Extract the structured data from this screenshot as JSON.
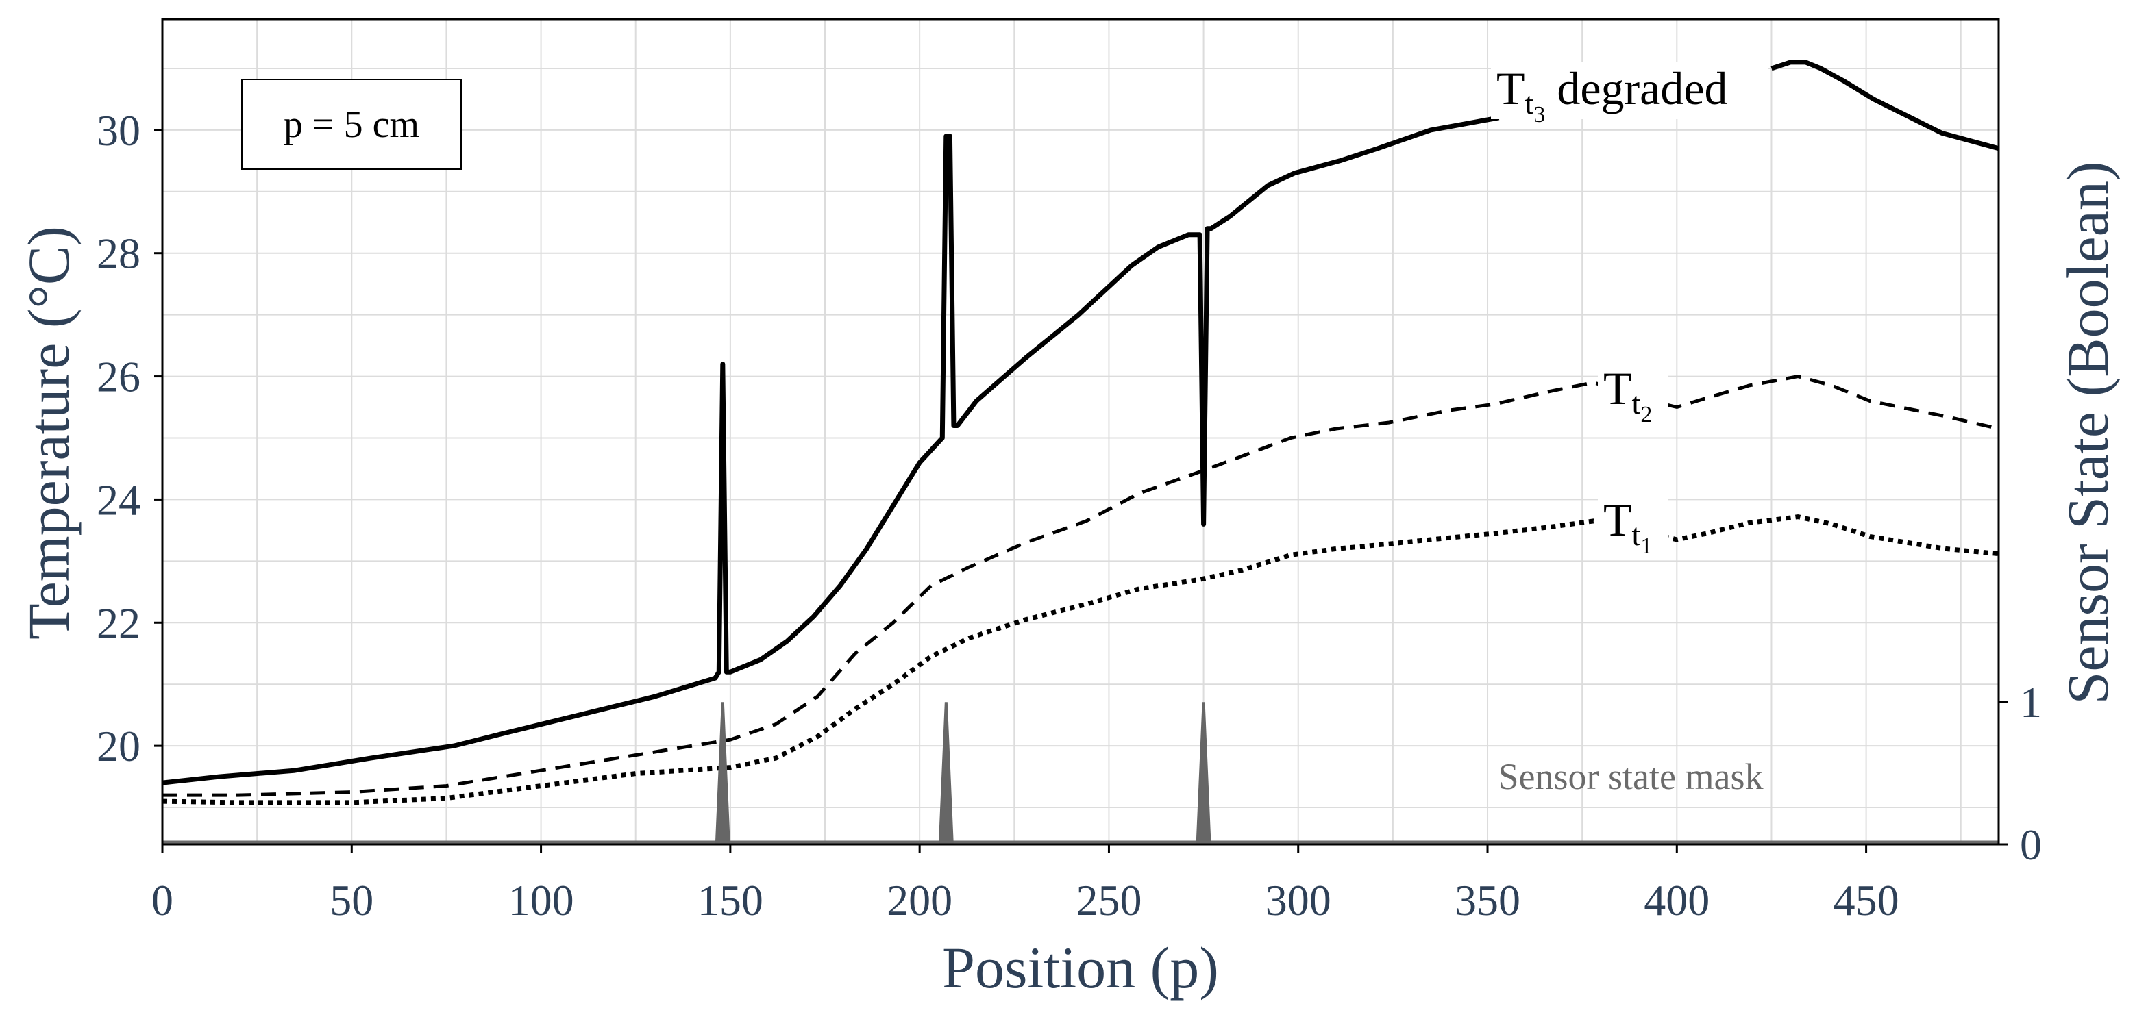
{
  "chart_data": {
    "type": "line",
    "xlabel": "Position (p)",
    "ylabel": "Temperature (°C)",
    "y2label": "Sensor State (Boolean)",
    "xlim": [
      0,
      485
    ],
    "ylim": [
      18.4,
      31.8
    ],
    "y2lim": [
      0,
      5.8
    ],
    "x_ticks": [
      0,
      50,
      100,
      150,
      200,
      250,
      300,
      350,
      400,
      450
    ],
    "y_ticks": [
      20,
      22,
      24,
      26,
      28,
      30
    ],
    "y2_ticks": [
      0,
      1
    ],
    "annotation_box": "p = 5 cm",
    "mask_label": "Sensor state mask",
    "labels": {
      "t3": {
        "main": "T",
        "sub": "t",
        "subsub": "3",
        "suffix": " degraded"
      },
      "t2": {
        "main": "T",
        "sub": "t",
        "subsub": "2"
      },
      "t1": {
        "main": "T",
        "sub": "t",
        "subsub": "1"
      }
    },
    "series": [
      {
        "name": "T_t3 degraded",
        "style": "solid",
        "x": [
          0,
          15,
          35,
          55,
          77,
          90,
          110,
          130,
          146,
          147,
          148,
          149,
          150,
          158,
          165,
          172,
          179,
          186,
          193,
          200,
          206,
          207,
          208,
          209,
          210,
          215,
          228,
          242,
          256,
          263,
          271,
          274,
          275,
          276,
          277,
          282,
          292,
          299,
          311,
          321,
          335,
          353
        ],
        "values": [
          19.4,
          19.5,
          19.6,
          19.8,
          20.0,
          20.2,
          20.5,
          20.8,
          21.1,
          21.2,
          26.2,
          21.2,
          21.2,
          21.4,
          21.7,
          22.1,
          22.6,
          23.2,
          23.9,
          24.6,
          25.0,
          29.9,
          29.9,
          25.2,
          25.2,
          25.6,
          26.3,
          27.0,
          27.8,
          28.1,
          28.3,
          28.3,
          23.6,
          28.4,
          28.4,
          28.6,
          29.1,
          29.3,
          29.5,
          29.7,
          30.0,
          30.2
        ]
      },
      {
        "name": "T_t3 degraded (right segment)",
        "style": "solid",
        "x": [
          425,
          430,
          434,
          438,
          444,
          452,
          470,
          485
        ],
        "values": [
          31.0,
          31.1,
          31.1,
          31.0,
          30.8,
          30.5,
          29.95,
          29.7
        ]
      },
      {
        "name": "T_t2",
        "style": "dashed",
        "x": [
          0,
          20,
          50,
          75,
          100,
          125,
          150,
          162,
          173,
          183,
          193,
          203,
          213,
          228,
          244,
          258,
          274,
          285,
          298,
          310,
          324,
          340,
          352,
          366,
          378,
          386,
          393,
          400,
          408,
          419,
          432,
          441,
          451,
          471,
          485
        ],
        "values": [
          19.2,
          19.2,
          19.25,
          19.35,
          19.6,
          19.85,
          20.1,
          20.35,
          20.8,
          21.5,
          22.0,
          22.6,
          22.9,
          23.3,
          23.65,
          24.1,
          24.45,
          24.7,
          25.0,
          25.15,
          25.25,
          25.45,
          25.55,
          25.75,
          25.9,
          25.75,
          25.6,
          25.5,
          25.65,
          25.85,
          26.0,
          25.85,
          25.6,
          25.35,
          25.15
        ]
      },
      {
        "name": "T_t1",
        "style": "dotted",
        "x": [
          0,
          20,
          50,
          75,
          100,
          125,
          150,
          162,
          173,
          183,
          193,
          203,
          213,
          228,
          244,
          258,
          274,
          285,
          298,
          310,
          324,
          340,
          352,
          366,
          378,
          386,
          393,
          400,
          408,
          419,
          432,
          441,
          451,
          471,
          485
        ],
        "values": [
          19.1,
          19.08,
          19.08,
          19.15,
          19.35,
          19.55,
          19.65,
          19.8,
          20.15,
          20.6,
          21.0,
          21.45,
          21.75,
          22.05,
          22.3,
          22.55,
          22.7,
          22.85,
          23.1,
          23.2,
          23.28,
          23.38,
          23.45,
          23.55,
          23.65,
          23.55,
          23.45,
          23.35,
          23.45,
          23.62,
          23.72,
          23.6,
          23.4,
          23.2,
          23.12
        ]
      },
      {
        "name": "Sensor state mask",
        "style": "mask",
        "axis": "y2",
        "spikes": [
          148,
          207,
          275
        ],
        "spike_value": 1
      }
    ]
  }
}
